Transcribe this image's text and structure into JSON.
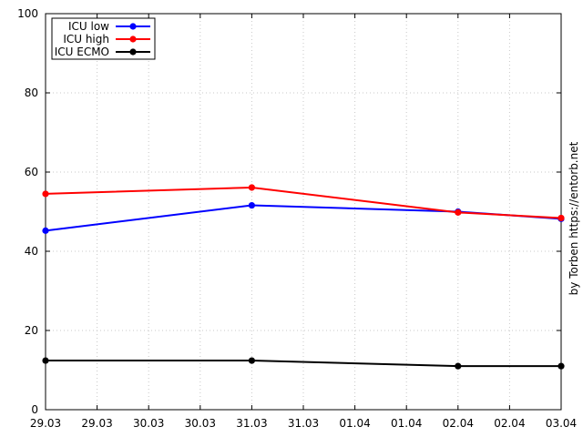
{
  "chart_data": {
    "type": "line",
    "x_tick_labels": [
      "29.03",
      "29.03",
      "30.03",
      "30.03",
      "31.03",
      "31.03",
      "01.04",
      "01.04",
      "02.04",
      "02.04",
      "03.04"
    ],
    "x": [
      "29.03",
      "31.03",
      "02.04",
      "03.04"
    ],
    "x_day_index": [
      0,
      2,
      4,
      5
    ],
    "xlim": [
      0,
      5
    ],
    "ylim": [
      0,
      100
    ],
    "y_ticks": [
      0,
      20,
      40,
      60,
      80,
      100
    ],
    "grid": true,
    "legend_position": "top-left",
    "series": [
      {
        "name": "ICU low",
        "color": "#0000ff",
        "values": [
          45.2,
          51.6,
          50.0,
          48.2
        ]
      },
      {
        "name": "ICU high",
        "color": "#ff0000",
        "values": [
          54.5,
          56.1,
          49.8,
          48.4
        ]
      },
      {
        "name": "ICU ECMO",
        "color": "#000000",
        "values": [
          12.4,
          12.4,
          11.0,
          11.0
        ]
      }
    ],
    "credit": "by Torben https://entorb.net"
  }
}
